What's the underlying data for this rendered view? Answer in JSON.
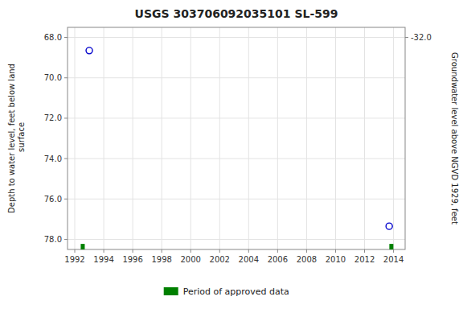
{
  "chart_data": {
    "type": "scatter",
    "title": "USGS 303706092035101 SL-599",
    "ylabel": "Depth to water level, feet below land\n surface",
    "y2label": "Groundwater level above NGVD 1929, feet",
    "xlim": [
      1991.5,
      2014.8
    ],
    "xticks": [
      1992,
      1994,
      1996,
      1998,
      2000,
      2002,
      2004,
      2006,
      2008,
      2010,
      2012,
      2014
    ],
    "ylim": [
      78.5,
      67.5
    ],
    "yticks": [
      {
        "value": 68.0,
        "label": "68.0"
      },
      {
        "value": 70.0,
        "label": "70.0"
      },
      {
        "value": 72.0,
        "label": "72.0"
      },
      {
        "value": 74.0,
        "label": "74.0"
      },
      {
        "value": 76.0,
        "label": "76.0"
      },
      {
        "value": 78.0,
        "label": "78.0"
      }
    ],
    "y2lim": [
      -21.5,
      -32.5
    ],
    "y2ticks": [
      {
        "value": -32.0,
        "label": "-32.0"
      }
    ],
    "grid": true,
    "legend": "bottom",
    "series": [
      {
        "type": "scatter",
        "color": "#0000cc",
        "marker": "circle-open",
        "x": [
          1993.0,
          2013.7
        ],
        "values": [
          68.65,
          77.35
        ]
      },
      {
        "name": "Period of approved data",
        "type": "bar",
        "color": "#008000",
        "x": [
          1992.55,
          2013.85
        ]
      }
    ]
  }
}
